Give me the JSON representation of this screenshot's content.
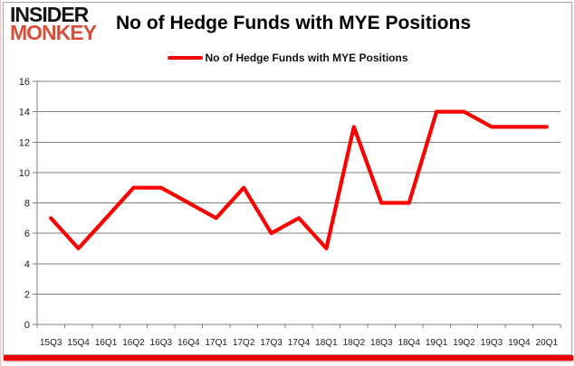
{
  "logo": {
    "line1": "INSIDER",
    "line2": "MONKEY"
  },
  "title": "No of Hedge Funds with MYE Positions",
  "legend": {
    "label": "No of Hedge Funds with MYE Positions"
  },
  "colors": {
    "series": "#fd0000",
    "logo_primary": "#141414",
    "logo_accent": "#d8503a",
    "grid": "#808080",
    "tick_label": "#1c1c1c",
    "bottom_bar": "#ee0000",
    "card_border": "#a6a6a6"
  },
  "chart_data": {
    "type": "line",
    "title": "No of Hedge Funds with MYE Positions",
    "categories": [
      "15Q3",
      "15Q4",
      "16Q1",
      "16Q2",
      "16Q3",
      "16Q4",
      "17Q1",
      "17Q2",
      "17Q3",
      "17Q4",
      "18Q1",
      "18Q2",
      "18Q3",
      "18Q4",
      "19Q1",
      "19Q2",
      "19Q3",
      "19Q4",
      "20Q1"
    ],
    "series": [
      {
        "name": "No of Hedge Funds with MYE Positions",
        "color": "#fd0000",
        "values": [
          7,
          5,
          7,
          9,
          9,
          8,
          7,
          9,
          6,
          7,
          5,
          13,
          8,
          8,
          14,
          14,
          13,
          13,
          13
        ]
      }
    ],
    "xlabel": "",
    "ylabel": "",
    "ylim": [
      0,
      16
    ],
    "ytick_step": 2,
    "grid": true,
    "legend_position": "top-center"
  }
}
